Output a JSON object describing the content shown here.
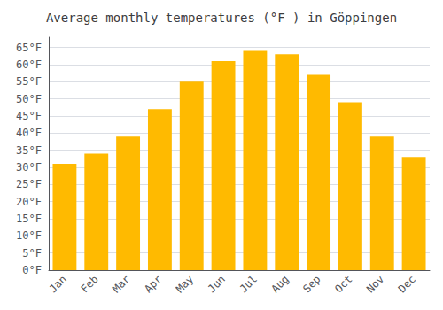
{
  "chart_data": {
    "type": "bar",
    "title": "Average monthly temperatures (°F ) in Göppingen",
    "categories": [
      "Jan",
      "Feb",
      "Mar",
      "Apr",
      "May",
      "Jun",
      "Jul",
      "Aug",
      "Sep",
      "Oct",
      "Nov",
      "Dec"
    ],
    "values": [
      31,
      34,
      39,
      47,
      55,
      61,
      64,
      63,
      57,
      49,
      39,
      33
    ],
    "color": "#FFBA00",
    "ylim": [
      0,
      68
    ],
    "yticks": [
      {
        "value": 0,
        "label": "0°F"
      },
      {
        "value": 5,
        "label": "5°F"
      },
      {
        "value": 10,
        "label": "10°F"
      },
      {
        "value": 15,
        "label": "15°F"
      },
      {
        "value": 20,
        "label": "20°F"
      },
      {
        "value": 25,
        "label": "25°F"
      },
      {
        "value": 30,
        "label": "30°F"
      },
      {
        "value": 35,
        "label": "35°F"
      },
      {
        "value": 40,
        "label": "40°F"
      },
      {
        "value": 45,
        "label": "45°F"
      },
      {
        "value": 50,
        "label": "50°F"
      },
      {
        "value": 55,
        "label": "55°F"
      },
      {
        "value": 60,
        "label": "60°F"
      },
      {
        "value": 65,
        "label": "65°F"
      }
    ],
    "grid": true
  }
}
